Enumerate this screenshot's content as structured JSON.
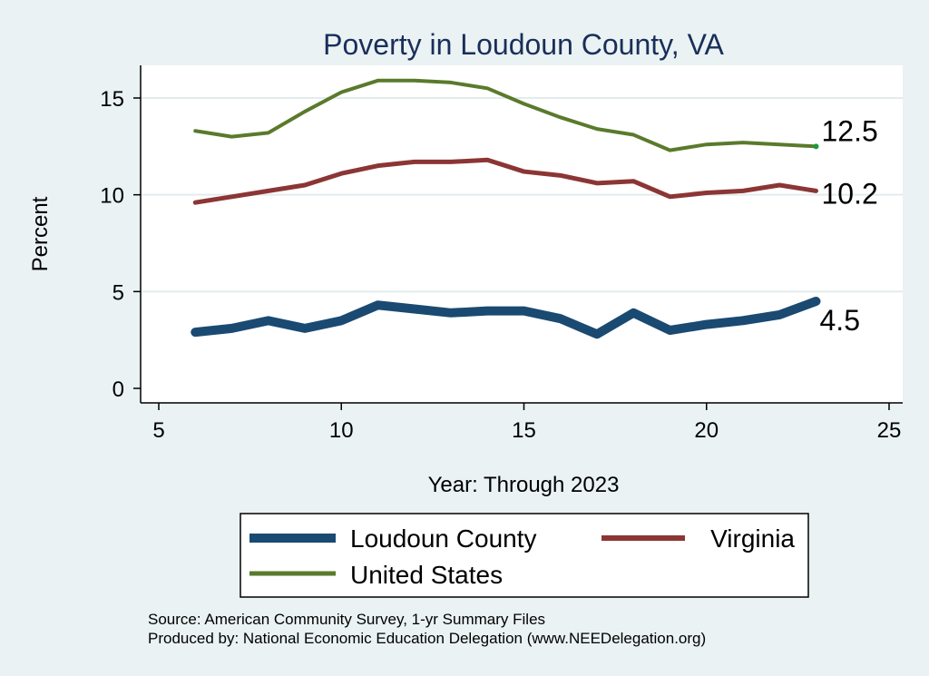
{
  "chart_data": {
    "type": "line",
    "title": "Poverty in Loudoun County, VA",
    "xlabel": "Year: Through 2023",
    "ylabel": "Percent",
    "xlim": [
      5,
      25
    ],
    "ylim": [
      0,
      16.5
    ],
    "xticks": [
      5,
      10,
      15,
      20,
      25
    ],
    "yticks": [
      0,
      5,
      10,
      15
    ],
    "grid": true,
    "x": [
      6,
      7,
      8,
      9,
      10,
      11,
      12,
      13,
      14,
      15,
      16,
      17,
      18,
      19,
      20,
      21,
      22,
      23
    ],
    "series": [
      {
        "name": "Loudoun County",
        "color": "#1a4a72",
        "values": [
          2.9,
          3.1,
          3.5,
          3.1,
          3.5,
          4.3,
          4.1,
          3.9,
          4.0,
          4.0,
          3.6,
          2.8,
          3.9,
          3.0,
          3.3,
          3.5,
          3.8,
          4.5
        ],
        "end_label": "4.5"
      },
      {
        "name": "Virginia",
        "color": "#8c3535",
        "values": [
          9.6,
          9.9,
          10.2,
          10.5,
          11.1,
          11.5,
          11.7,
          11.7,
          11.8,
          11.2,
          11.0,
          10.6,
          10.7,
          9.9,
          10.1,
          10.2,
          10.5,
          10.2
        ],
        "end_label": "10.2"
      },
      {
        "name": "United States",
        "color": "#5a7a2c",
        "values": [
          13.3,
          13.0,
          13.2,
          14.3,
          15.3,
          15.9,
          15.9,
          15.8,
          15.5,
          14.7,
          14.0,
          13.4,
          13.1,
          12.3,
          12.6,
          12.7,
          12.6,
          12.5
        ],
        "end_label": "12.5"
      }
    ],
    "legend": [
      "Loudoun County",
      "Virginia",
      "United States"
    ]
  },
  "footer": {
    "source": "Source: American Community Survey, 1-yr Summary Files",
    "producer": "Produced by: National Economic Education Delegation (www.NEEDelegation.org)"
  }
}
